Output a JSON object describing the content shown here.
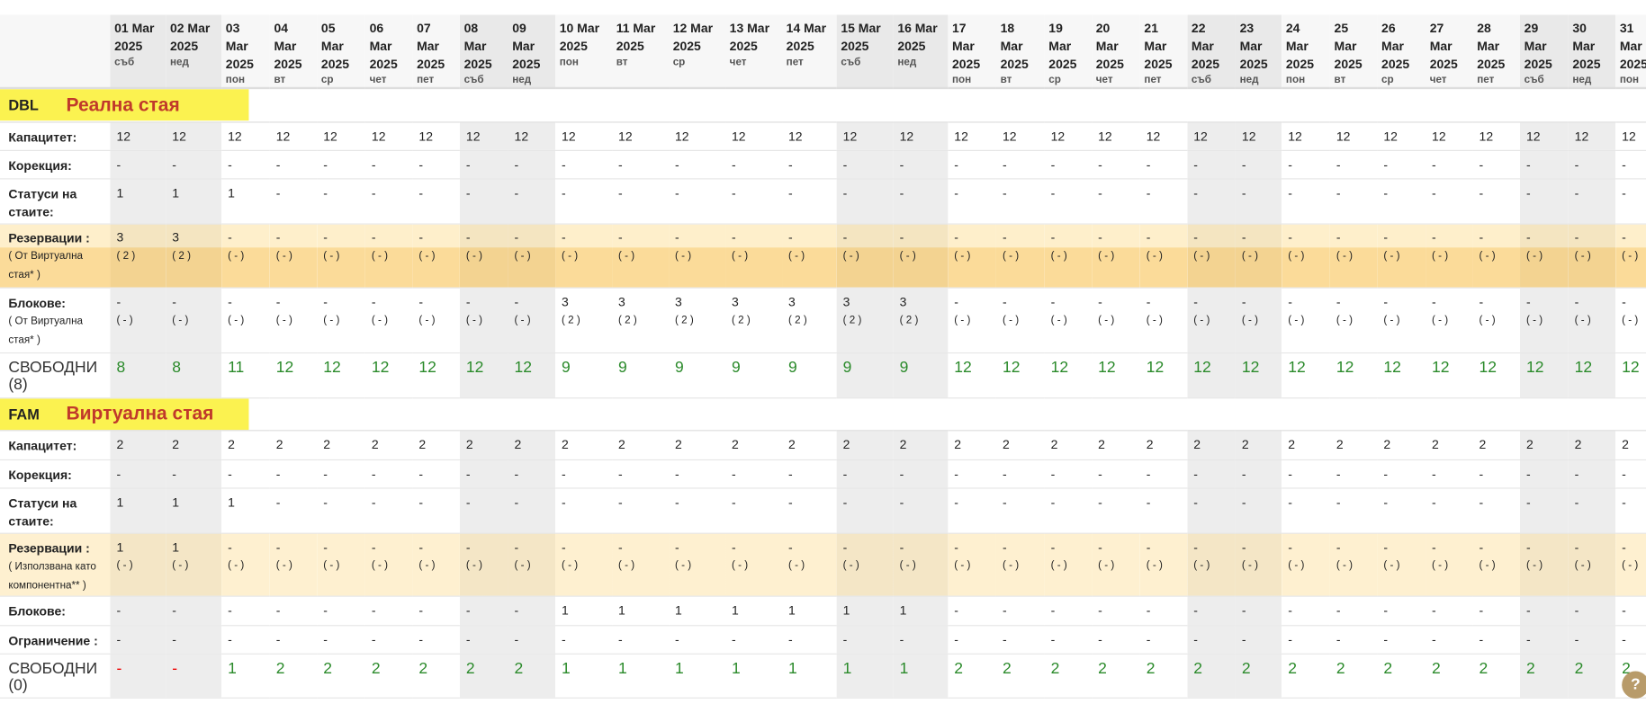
{
  "days": [
    {
      "date": "01 Mar",
      "year": "2025",
      "weekday": "съб"
    },
    {
      "date": "02 Mar",
      "year": "2025",
      "weekday": "нед"
    },
    {
      "date": "03 Mar",
      "year": "2025",
      "weekday": "пон"
    },
    {
      "date": "04 Mar",
      "year": "2025",
      "weekday": "вт"
    },
    {
      "date": "05 Mar",
      "year": "2025",
      "weekday": "ср"
    },
    {
      "date": "06 Mar",
      "year": "2025",
      "weekday": "чет"
    },
    {
      "date": "07 Mar",
      "year": "2025",
      "weekday": "пет"
    },
    {
      "date": "08 Mar",
      "year": "2025",
      "weekday": "съб"
    },
    {
      "date": "09 Mar",
      "year": "2025",
      "weekday": "нед"
    },
    {
      "date": "10 Mar",
      "year": "2025",
      "weekday": "пон"
    },
    {
      "date": "11 Mar",
      "year": "2025",
      "weekday": "вт"
    },
    {
      "date": "12 Mar",
      "year": "2025",
      "weekday": "ср"
    },
    {
      "date": "13 Mar",
      "year": "2025",
      "weekday": "чет"
    },
    {
      "date": "14 Mar",
      "year": "2025",
      "weekday": "пет"
    },
    {
      "date": "15 Mar",
      "year": "2025",
      "weekday": "съб"
    },
    {
      "date": "16 Mar",
      "year": "2025",
      "weekday": "нед"
    },
    {
      "date": "17 Mar",
      "year": "2025",
      "weekday": "пон"
    },
    {
      "date": "18 Mar",
      "year": "2025",
      "weekday": "вт"
    },
    {
      "date": "19 Mar",
      "year": "2025",
      "weekday": "ср"
    },
    {
      "date": "20 Mar",
      "year": "2025",
      "weekday": "чет"
    },
    {
      "date": "21 Mar",
      "year": "2025",
      "weekday": "пет"
    },
    {
      "date": "22 Mar",
      "year": "2025",
      "weekday": "съб"
    },
    {
      "date": "23 Mar",
      "year": "2025",
      "weekday": "нед"
    },
    {
      "date": "24 Mar",
      "year": "2025",
      "weekday": "пон"
    },
    {
      "date": "25 Mar",
      "year": "2025",
      "weekday": "вт"
    },
    {
      "date": "26 Mar",
      "year": "2025",
      "weekday": "ср"
    },
    {
      "date": "27 Mar",
      "year": "2025",
      "weekday": "чет"
    },
    {
      "date": "28 Mar",
      "year": "2025",
      "weekday": "пет"
    },
    {
      "date": "29 Mar",
      "year": "2025",
      "weekday": "съб"
    },
    {
      "date": "30 Mar",
      "year": "2025",
      "weekday": "нед"
    },
    {
      "date": "31 Mar",
      "year": "2025",
      "weekday": "пон"
    }
  ],
  "sections": [
    {
      "code": "DBL",
      "name": "Реална стая",
      "rows": [
        {
          "label": "Капацитет:",
          "values": [
            "12",
            "12",
            "12",
            "12",
            "12",
            "12",
            "12",
            "12",
            "12",
            "12",
            "12",
            "12",
            "12",
            "12",
            "12",
            "12",
            "12",
            "12",
            "12",
            "12",
            "12",
            "12",
            "12",
            "12",
            "12",
            "12",
            "12",
            "12",
            "12",
            "12",
            "12"
          ]
        },
        {
          "label": "Корекция:",
          "values": [
            "-",
            "-",
            "-",
            "-",
            "-",
            "-",
            "-",
            "-",
            "-",
            "-",
            "-",
            "-",
            "-",
            "-",
            "-",
            "-",
            "-",
            "-",
            "-",
            "-",
            "-",
            "-",
            "-",
            "-",
            "-",
            "-",
            "-",
            "-",
            "-",
            "-",
            "-"
          ]
        },
        {
          "label": "Статуси на стаите:",
          "values": [
            "1",
            "1",
            "1",
            "-",
            "-",
            "-",
            "-",
            "-",
            "-",
            "-",
            "-",
            "-",
            "-",
            "-",
            "-",
            "-",
            "-",
            "-",
            "-",
            "-",
            "-",
            "-",
            "-",
            "-",
            "-",
            "-",
            "-",
            "-",
            "-",
            "-",
            "-"
          ]
        },
        {
          "label": "Резервации :",
          "sublabel": "( От Виртуална стая* )",
          "values": [
            "3",
            "3",
            "-",
            "-",
            "-",
            "-",
            "-",
            "-",
            "-",
            "-",
            "-",
            "-",
            "-",
            "-",
            "-",
            "-",
            "-",
            "-",
            "-",
            "-",
            "-",
            "-",
            "-",
            "-",
            "-",
            "-",
            "-",
            "-",
            "-",
            "-",
            "-"
          ],
          "subvalues": [
            "( 2 )",
            "( 2 )",
            "( - )",
            "( - )",
            "( - )",
            "( - )",
            "( - )",
            "( - )",
            "( - )",
            "( - )",
            "( - )",
            "( - )",
            "( - )",
            "( - )",
            "( - )",
            "( - )",
            "( - )",
            "( - )",
            "( - )",
            "( - )",
            "( - )",
            "( - )",
            "( - )",
            "( - )",
            "( - )",
            "( - )",
            "( - )",
            "( - )",
            "( - )",
            "( - )",
            "( - )"
          ]
        },
        {
          "label": "Блокове:",
          "sublabel": "( От Виртуална стая* )",
          "values": [
            "-",
            "-",
            "-",
            "-",
            "-",
            "-",
            "-",
            "-",
            "-",
            "3",
            "3",
            "3",
            "3",
            "3",
            "3",
            "3",
            "-",
            "-",
            "-",
            "-",
            "-",
            "-",
            "-",
            "-",
            "-",
            "-",
            "-",
            "-",
            "-",
            "-",
            "-"
          ],
          "subvalues": [
            "( - )",
            "( - )",
            "( - )",
            "( - )",
            "( - )",
            "( - )",
            "( - )",
            "( - )",
            "( - )",
            "( 2 )",
            "( 2 )",
            "( 2 )",
            "( 2 )",
            "( 2 )",
            "( 2 )",
            "( 2 )",
            "( - )",
            "( - )",
            "( - )",
            "( - )",
            "( - )",
            "( - )",
            "( - )",
            "( - )",
            "( - )",
            "( - )",
            "( - )",
            "( - )",
            "( - )",
            "( - )",
            "( - )"
          ]
        },
        {
          "label": "СВОБОДНИ",
          "sublabel": "(8)",
          "values": [
            "8",
            "8",
            "11",
            "12",
            "12",
            "12",
            "12",
            "12",
            "12",
            "9",
            "9",
            "9",
            "9",
            "9",
            "9",
            "9",
            "12",
            "12",
            "12",
            "12",
            "12",
            "12",
            "12",
            "12",
            "12",
            "12",
            "12",
            "12",
            "12",
            "12",
            "12"
          ]
        }
      ]
    },
    {
      "code": "FAM",
      "name": "Виртуална стая",
      "rows": [
        {
          "label": "Капацитет:",
          "values": [
            "2",
            "2",
            "2",
            "2",
            "2",
            "2",
            "2",
            "2",
            "2",
            "2",
            "2",
            "2",
            "2",
            "2",
            "2",
            "2",
            "2",
            "2",
            "2",
            "2",
            "2",
            "2",
            "2",
            "2",
            "2",
            "2",
            "2",
            "2",
            "2",
            "2",
            "2"
          ]
        },
        {
          "label": "Корекция:",
          "values": [
            "-",
            "-",
            "-",
            "-",
            "-",
            "-",
            "-",
            "-",
            "-",
            "-",
            "-",
            "-",
            "-",
            "-",
            "-",
            "-",
            "-",
            "-",
            "-",
            "-",
            "-",
            "-",
            "-",
            "-",
            "-",
            "-",
            "-",
            "-",
            "-",
            "-",
            "-"
          ]
        },
        {
          "label": "Статуси на стаите:",
          "values": [
            "1",
            "1",
            "1",
            "-",
            "-",
            "-",
            "-",
            "-",
            "-",
            "-",
            "-",
            "-",
            "-",
            "-",
            "-",
            "-",
            "-",
            "-",
            "-",
            "-",
            "-",
            "-",
            "-",
            "-",
            "-",
            "-",
            "-",
            "-",
            "-",
            "-",
            "-"
          ]
        },
        {
          "label": "Резервации :",
          "sublabel": "( Използвана като компонентна** )",
          "values": [
            "1",
            "1",
            "-",
            "-",
            "-",
            "-",
            "-",
            "-",
            "-",
            "-",
            "-",
            "-",
            "-",
            "-",
            "-",
            "-",
            "-",
            "-",
            "-",
            "-",
            "-",
            "-",
            "-",
            "-",
            "-",
            "-",
            "-",
            "-",
            "-",
            "-",
            "-"
          ],
          "subvalues": [
            "( - )",
            "( - )",
            "( - )",
            "( - )",
            "( - )",
            "( - )",
            "( - )",
            "( - )",
            "( - )",
            "( - )",
            "( - )",
            "( - )",
            "( - )",
            "( - )",
            "( - )",
            "( - )",
            "( - )",
            "( - )",
            "( - )",
            "( - )",
            "( - )",
            "( - )",
            "( - )",
            "( - )",
            "( - )",
            "( - )",
            "( - )",
            "( - )",
            "( - )",
            "( - )",
            "( - )"
          ]
        },
        {
          "label": "Блокове:",
          "values": [
            "-",
            "-",
            "-",
            "-",
            "-",
            "-",
            "-",
            "-",
            "-",
            "1",
            "1",
            "1",
            "1",
            "1",
            "1",
            "1",
            "-",
            "-",
            "-",
            "-",
            "-",
            "-",
            "-",
            "-",
            "-",
            "-",
            "-",
            "-",
            "-",
            "-",
            "-"
          ]
        },
        {
          "label": "Ограничение :",
          "values": [
            "-",
            "-",
            "-",
            "-",
            "-",
            "-",
            "-",
            "-",
            "-",
            "-",
            "-",
            "-",
            "-",
            "-",
            "-",
            "-",
            "-",
            "-",
            "-",
            "-",
            "-",
            "-",
            "-",
            "-",
            "-",
            "-",
            "-",
            "-",
            "-",
            "-",
            "-"
          ]
        },
        {
          "label": "СВОБОДНИ",
          "sublabel": "(0)",
          "values": [
            "-",
            "-",
            "1",
            "2",
            "2",
            "2",
            "2",
            "2",
            "2",
            "1",
            "1",
            "1",
            "1",
            "1",
            "1",
            "1",
            "2",
            "2",
            "2",
            "2",
            "2",
            "2",
            "2",
            "2",
            "2",
            "2",
            "2",
            "2",
            "2",
            "2",
            "2"
          ]
        }
      ]
    }
  ]
}
